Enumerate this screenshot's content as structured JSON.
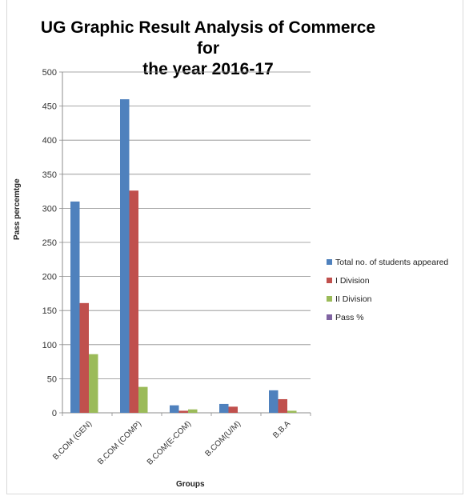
{
  "chart_data": {
    "type": "bar",
    "title_line1": "UG  Graphic Result Analysis of Commerce for",
    "title_line2": "the year 2016-17",
    "xlabel": "Groups",
    "ylabel": "Pass percemtge",
    "ylim": [
      0,
      500
    ],
    "yticks": [
      0,
      50,
      100,
      150,
      200,
      250,
      300,
      350,
      400,
      450,
      500
    ],
    "grid": true,
    "legend_position": "right",
    "categories": [
      "B.COM (GEN)",
      "B.COM (COMP)",
      "B.COM(E-COM)",
      "B.COM(U/M)",
      "B.B.A"
    ],
    "series": [
      {
        "name": "Total no. of students appeared",
        "color": "#4f81bd",
        "values": [
          310,
          460,
          11,
          13,
          33
        ]
      },
      {
        "name": "I Division",
        "color": "#c0504d",
        "values": [
          161,
          326,
          3,
          9,
          20
        ]
      },
      {
        "name": "II Division",
        "color": "#9bbb59",
        "values": [
          86,
          38,
          5,
          0,
          3
        ]
      },
      {
        "name": "Pass %",
        "color": "#8064a2",
        "values": [
          0,
          0,
          0,
          0,
          0
        ]
      }
    ]
  }
}
